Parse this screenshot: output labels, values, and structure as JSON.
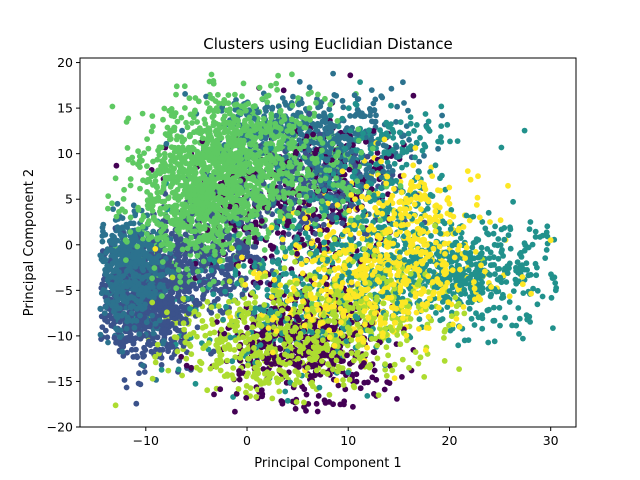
{
  "chart_data": {
    "type": "scatter",
    "title": "Clusters using Euclidian Distance",
    "xlabel": "Principal Component 1",
    "ylabel": "Principal Component 2",
    "xlim": [
      -16.5,
      32.5
    ],
    "ylim": [
      -20,
      20.5
    ],
    "xticks": [
      -10,
      0,
      10,
      20,
      30
    ],
    "xtick_labels": [
      "−10",
      "0",
      "10",
      "20",
      "30"
    ],
    "yticks": [
      -20,
      -15,
      -10,
      -5,
      0,
      5,
      10,
      15,
      20
    ],
    "ytick_labels": [
      "−20",
      "−15",
      "−10",
      "−5",
      "0",
      "5",
      "10",
      "15",
      "20"
    ],
    "grid": false,
    "legend": "none",
    "point_color_scale": "viridis",
    "series": [
      {
        "color": "#440154",
        "clusters": [
          {
            "center": [
              6,
              -11
            ],
            "spread": [
              4,
              3.5
            ],
            "n": 520
          },
          {
            "center": [
              3,
              4
            ],
            "spread": [
              5,
              4
            ],
            "n": 260
          },
          {
            "center": [
              9,
              8
            ],
            "spread": [
              3,
              3
            ],
            "n": 120
          }
        ],
        "points": [
          [
            10.2,
            18.6
          ],
          [
            8.5,
            -17.5
          ],
          [
            -5.5,
            -13.5
          ],
          [
            4.8,
            -18.0
          ],
          [
            12.5,
            12.5
          ],
          [
            15.5,
            11.0
          ]
        ]
      },
      {
        "color": "#3b528b",
        "clusters": [
          {
            "center": [
              -10,
              -6
            ],
            "spread": [
              2.4,
              3.2
            ],
            "n": 900
          },
          {
            "center": [
              -4,
              -1
            ],
            "spread": [
              3,
              3
            ],
            "n": 320
          },
          {
            "center": [
              6,
              6
            ],
            "spread": [
              4,
              3
            ],
            "n": 220
          }
        ],
        "points": [
          [
            -14.0,
            -4.5
          ],
          [
            -13.5,
            -2.0
          ],
          [
            -12.0,
            -9.5
          ]
        ]
      },
      {
        "color": "#2c728e",
        "clusters": [
          {
            "center": [
              -11.5,
              -3
            ],
            "spread": [
              1.8,
              3.2
            ],
            "n": 650
          },
          {
            "center": [
              8,
              11
            ],
            "spread": [
              4,
              3
            ],
            "n": 420
          },
          {
            "center": [
              2,
              13
            ],
            "spread": [
              3,
              2
            ],
            "n": 120
          }
        ],
        "points": [
          [
            14.0,
            10.0
          ],
          [
            15.5,
            12.0
          ],
          [
            11.0,
            16.0
          ]
        ]
      },
      {
        "color": "#21918c",
        "clusters": [
          {
            "center": [
              21,
              -3
            ],
            "spread": [
              4.5,
              3
            ],
            "n": 500
          },
          {
            "center": [
              12,
              2
            ],
            "spread": [
              4,
              5
            ],
            "n": 300
          },
          {
            "center": [
              3,
              -5
            ],
            "spread": [
              6,
              5
            ],
            "n": 280
          },
          {
            "center": [
              14,
              12
            ],
            "spread": [
              3,
              2
            ],
            "n": 80
          }
        ],
        "points": [
          [
            30.5,
            -5.0
          ],
          [
            28.0,
            2.5
          ],
          [
            25.5,
            -8.0
          ],
          [
            27.0,
            -3.0
          ],
          [
            14.0,
            -10.5
          ],
          [
            16.0,
            -10.0
          ],
          [
            21.5,
            -10.5
          ],
          [
            16.5,
            12.5
          ],
          [
            17.5,
            11.0
          ]
        ]
      },
      {
        "color": "#5ec962",
        "clusters": [
          {
            "center": [
              -3,
              7
            ],
            "spread": [
              3.5,
              3.5
            ],
            "n": 700
          },
          {
            "center": [
              -1,
              11
            ],
            "spread": [
              4,
              3
            ],
            "n": 500
          },
          {
            "center": [
              -6,
              2
            ],
            "spread": [
              3,
              3
            ],
            "n": 300
          },
          {
            "center": [
              4,
              7
            ],
            "spread": [
              4,
              3
            ],
            "n": 240
          }
        ],
        "points": [
          [
            -12.0,
            0.5
          ],
          [
            -11.5,
            3.0
          ],
          [
            -9.0,
            5.0
          ],
          [
            1.5,
            16.0
          ],
          [
            7.0,
            16.5
          ]
        ]
      },
      {
        "color": "#addc30",
        "clusters": [
          {
            "center": [
              4,
              -10
            ],
            "spread": [
              6,
              3
            ],
            "n": 600
          },
          {
            "center": [
              12,
              -6
            ],
            "spread": [
              4,
              3
            ],
            "n": 180
          }
        ],
        "points": [
          [
            -5.5,
            -12.0
          ],
          [
            -4.5,
            -13.0
          ],
          [
            -6.0,
            -12.5
          ],
          [
            13.0,
            -16.5
          ],
          [
            16.0,
            -13.5
          ],
          [
            17.5,
            -14.5
          ]
        ]
      },
      {
        "color": "#fde725",
        "clusters": [
          {
            "center": [
              15,
              -2
            ],
            "spread": [
              4.5,
              3.5
            ],
            "n": 450
          },
          {
            "center": [
              8,
              -5
            ],
            "spread": [
              4,
              4
            ],
            "n": 160
          },
          {
            "center": [
              16,
              5
            ],
            "spread": [
              3,
              2.5
            ],
            "n": 90
          }
        ],
        "points": [
          [
            23.0,
            3.0
          ],
          [
            24.0,
            2.5
          ],
          [
            20.0,
            4.5
          ],
          [
            21.0,
            -9.0
          ],
          [
            22.5,
            -6.0
          ],
          [
            30.0,
            0.5
          ]
        ]
      }
    ]
  }
}
